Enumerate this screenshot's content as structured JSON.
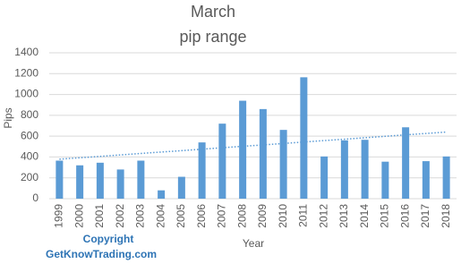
{
  "chart_data": {
    "type": "bar",
    "title": "March",
    "subtitle": "pip range",
    "x_label": "Year",
    "y_label": "Pips",
    "categories": [
      "1999",
      "2000",
      "2001",
      "2002",
      "2003",
      "2004",
      "2005",
      "2006",
      "2007",
      "2008",
      "2009",
      "2010",
      "2011",
      "2012",
      "2013",
      "2014",
      "2015",
      "2016",
      "2017",
      "2018"
    ],
    "values": [
      365,
      320,
      345,
      280,
      365,
      80,
      210,
      540,
      720,
      940,
      860,
      660,
      1165,
      405,
      560,
      565,
      355,
      685,
      360,
      405
    ],
    "color": "#5b9bd5",
    "ylim": [
      0,
      1400
    ],
    "yticks": [
      0,
      200,
      400,
      600,
      800,
      1000,
      1200,
      1400
    ],
    "grid": true,
    "trendline": true,
    "annotations": [
      "Copyright",
      "GetKnowTrading.com"
    ]
  }
}
